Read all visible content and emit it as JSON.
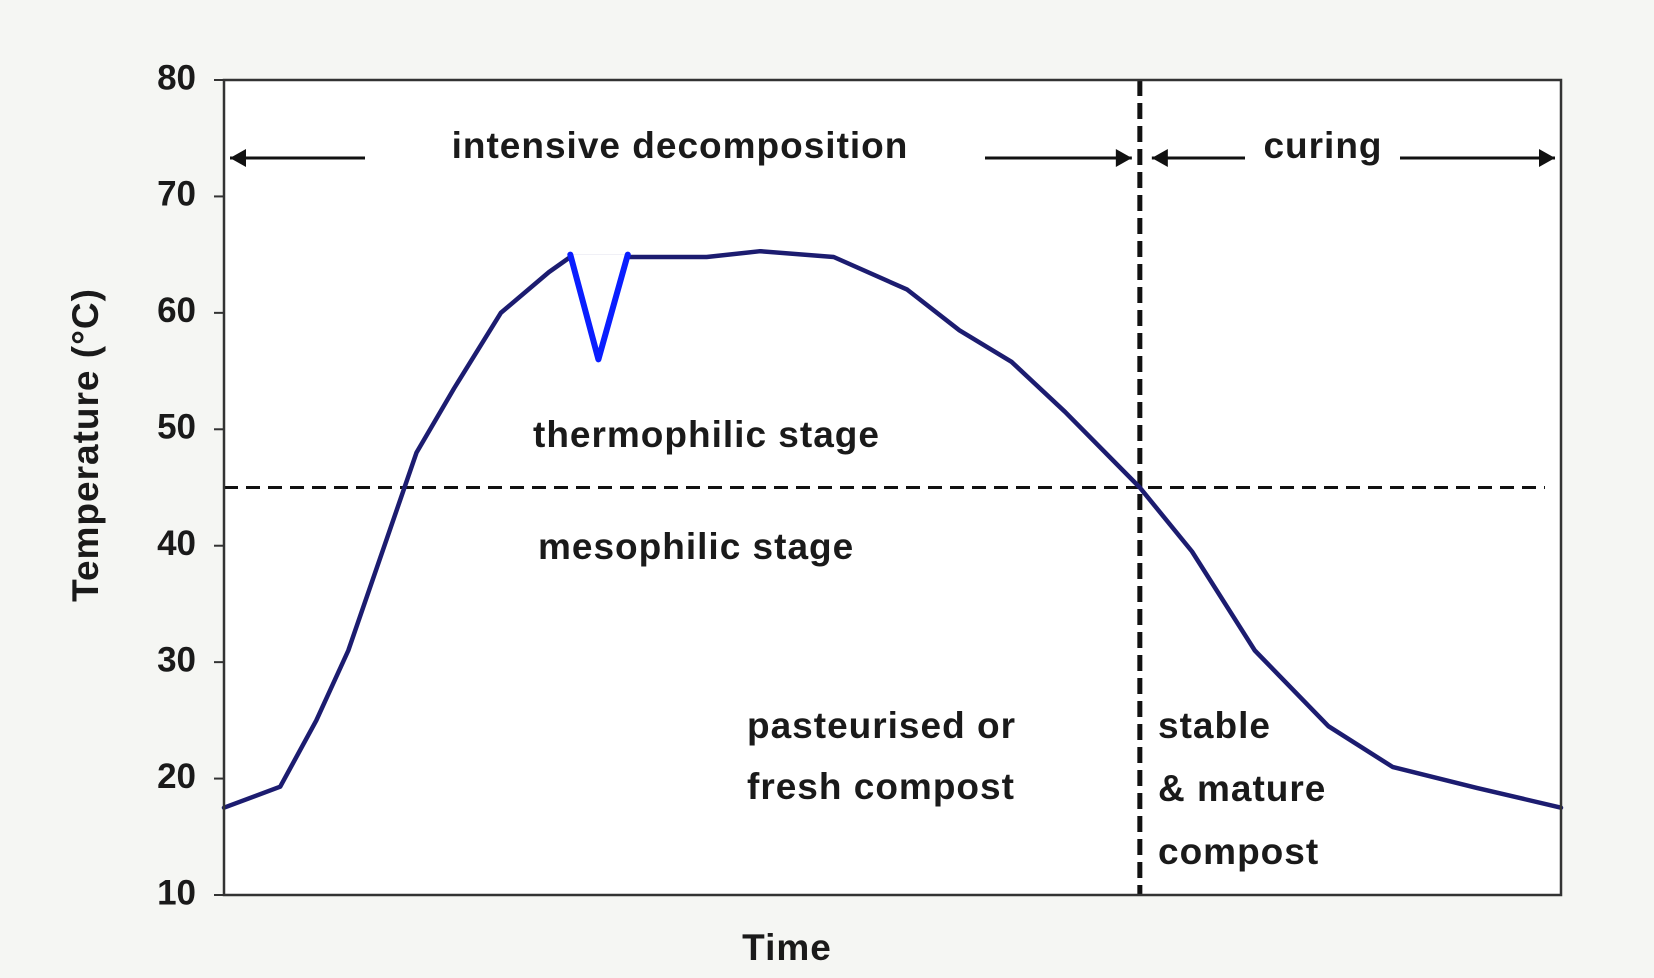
{
  "chart_data": {
    "type": "line",
    "xlabel": "Time",
    "ylabel": "Temperature (°C)",
    "ylim": [
      10,
      80
    ],
    "yticks": [
      10,
      20,
      30,
      40,
      50,
      60,
      70,
      80
    ],
    "xlim": [
      0,
      100
    ],
    "series": [
      {
        "color": "#1c1c70",
        "x": [
          0,
          4.2,
          6.9,
          9.3,
          11.7,
          14.4,
          17.2,
          20.7,
          24.3,
          25.9,
          30.2,
          36.1,
          40.1,
          45.6,
          51.1,
          55.0,
          58.9,
          62.9,
          68.5,
          72.4,
          77.1,
          82.6,
          87.4,
          93.7,
          100
        ],
        "values": [
          17.5,
          19.3,
          25,
          31,
          39,
          48,
          53.5,
          60,
          63.5,
          64.8,
          64.8,
          64.8,
          65.3,
          64.8,
          62,
          58.5,
          55.8,
          51.5,
          45,
          39.5,
          31,
          24.5,
          21,
          19.2,
          17.5
        ]
      },
      {
        "color": "#0a1eff",
        "x": [
          25.9,
          28.0,
          30.2
        ],
        "values": [
          65,
          56,
          65
        ]
      }
    ],
    "hline": 45,
    "vline": 68.5,
    "annotations": {
      "intensive": "intensive decomposition",
      "curing": "curing",
      "thermophilic": "thermophilic stage",
      "mesophilic": "mesophilic stage",
      "fresh": [
        "pasteurised or",
        "fresh compost"
      ],
      "mature": [
        "stable",
        "& mature",
        "compost"
      ]
    }
  }
}
